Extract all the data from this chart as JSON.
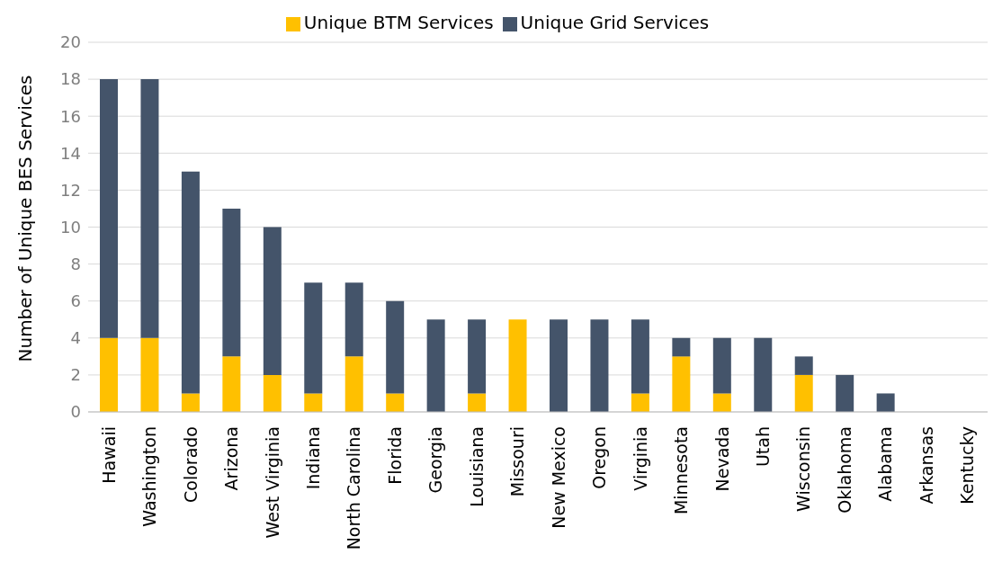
{
  "chart_data": {
    "type": "bar",
    "stacked": true,
    "ylabel": "Number of Unique BES Services",
    "categories": [
      "Hawaii",
      "Washington",
      "Colorado",
      "Arizona",
      "West Virginia",
      "Indiana",
      "North Carolina",
      "Florida",
      "Georgia",
      "Louisiana",
      "Missouri",
      "New Mexico",
      "Oregon",
      "Virginia",
      "Minnesota",
      "Nevada",
      "Utah",
      "Wisconsin",
      "Oklahoma",
      "Alabama",
      "Arkansas",
      "Kentucky"
    ],
    "series": [
      {
        "name": "Unique BTM Services",
        "color": "#ffc000",
        "values": [
          4,
          4,
          1,
          3,
          2,
          1,
          3,
          1,
          0,
          1,
          5,
          0,
          0,
          1,
          3,
          1,
          0,
          2,
          0,
          0,
          0,
          0
        ]
      },
      {
        "name": "Unique Grid Services",
        "color": "#44546a",
        "values": [
          14,
          14,
          12,
          8,
          8,
          6,
          4,
          5,
          5,
          4,
          0,
          5,
          5,
          4,
          1,
          3,
          4,
          1,
          2,
          1,
          0,
          0
        ]
      }
    ],
    "ylim": [
      0,
      20
    ],
    "yticks": [
      0,
      2,
      4,
      6,
      8,
      10,
      12,
      14,
      16,
      18,
      20
    ],
    "grid": "y",
    "legend": "top"
  }
}
